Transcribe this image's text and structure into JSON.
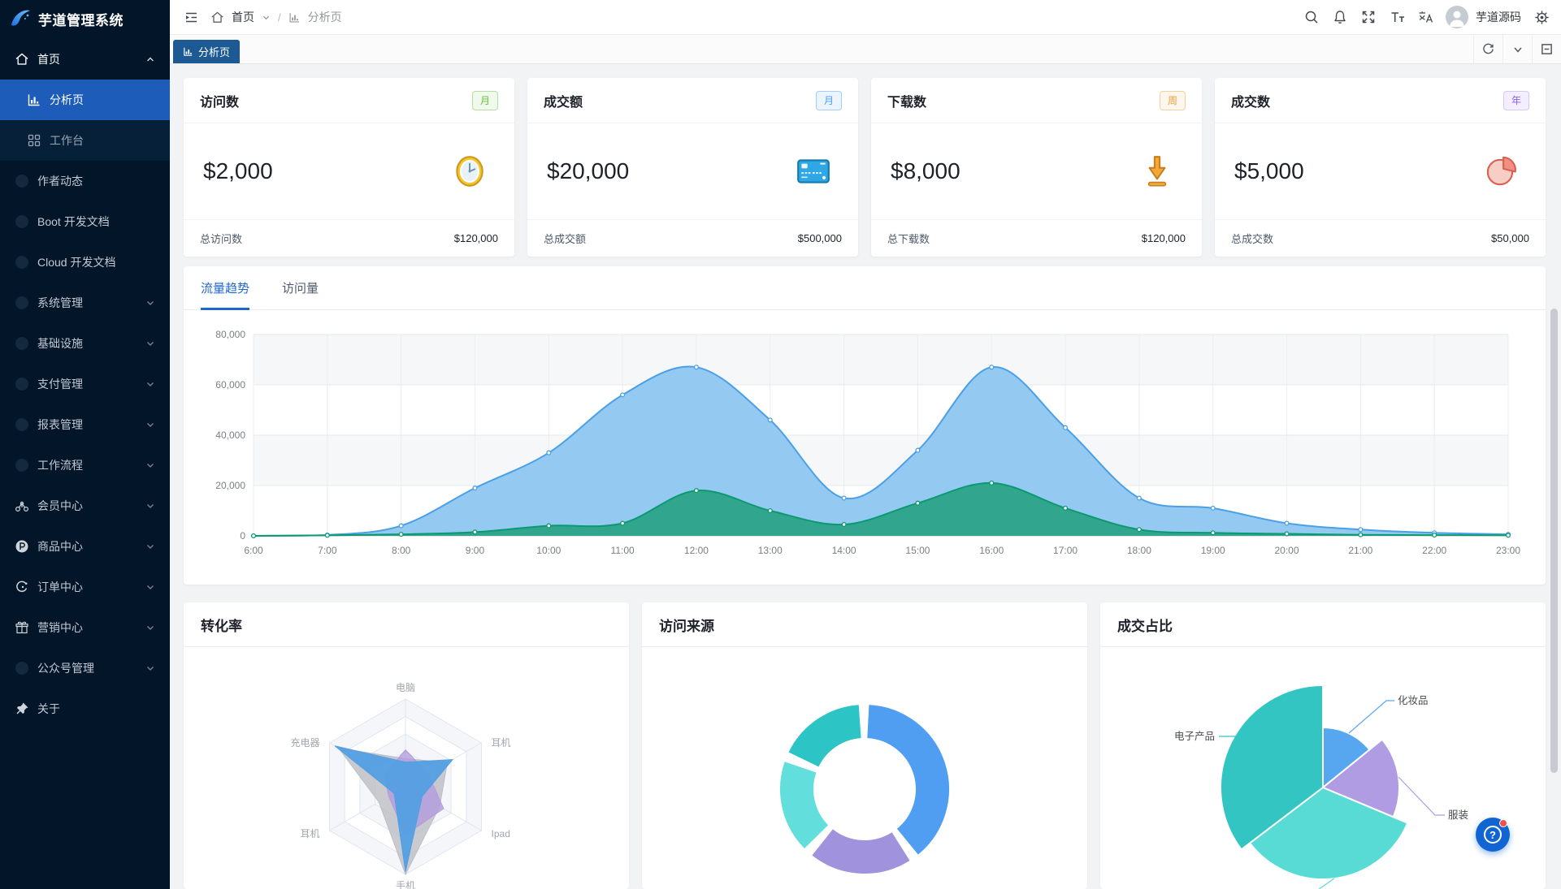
{
  "app": {
    "title": "芋道管理系统"
  },
  "sidebar": {
    "logo_text": "芋道管理系统",
    "items": [
      {
        "label": "首页",
        "icon": "home-icon",
        "chevron": "up",
        "active": false
      },
      {
        "label": "分析页",
        "icon": "bar-chart-icon",
        "active": true
      },
      {
        "label": "工作台",
        "icon": "grid-icon",
        "active": false
      },
      {
        "label": "作者动态",
        "icon": "dot-icon",
        "active": false
      },
      {
        "label": "Boot 开发文档",
        "icon": "dot-icon",
        "active": false
      },
      {
        "label": "Cloud 开发文档",
        "icon": "dot-icon",
        "active": false
      },
      {
        "label": "系统管理",
        "icon": "dot-icon",
        "chevron": "down",
        "active": false
      },
      {
        "label": "基础设施",
        "icon": "dot-icon",
        "chevron": "down",
        "active": false
      },
      {
        "label": "支付管理",
        "icon": "dot-icon",
        "chevron": "down",
        "active": false
      },
      {
        "label": "报表管理",
        "icon": "dot-icon",
        "chevron": "down",
        "active": false
      },
      {
        "label": "工作流程",
        "icon": "dot-icon",
        "chevron": "down",
        "active": false
      },
      {
        "label": "会员中心",
        "icon": "member-icon",
        "chevron": "down",
        "active": false
      },
      {
        "label": "商品中心",
        "icon": "product-icon",
        "chevron": "down",
        "active": false
      },
      {
        "label": "订单中心",
        "icon": "order-icon",
        "chevron": "down",
        "active": false
      },
      {
        "label": "营销中心",
        "icon": "gift-icon",
        "chevron": "down",
        "active": false
      },
      {
        "label": "公众号管理",
        "icon": "dot-icon",
        "chevron": "down",
        "active": false
      },
      {
        "label": "关于",
        "icon": "pin-icon",
        "active": false
      }
    ]
  },
  "header": {
    "breadcrumb": {
      "root": "首页",
      "separator": "/",
      "current": "分析页"
    },
    "right_icons": [
      "search-icon",
      "bell-icon",
      "fullscreen-icon",
      "font-size-icon",
      "language-icon",
      "settings-icon"
    ],
    "user": {
      "name": "芋道源码"
    }
  },
  "tabbar": {
    "active_tab": "分析页",
    "right_icons": [
      "refresh-icon",
      "chevron-down-icon",
      "maximize-icon"
    ]
  },
  "stat_cards": [
    {
      "title": "访问数",
      "badge": "月",
      "badge_style": "success",
      "value": "$2,000",
      "icon": "clock-icon",
      "footer_label": "总访问数",
      "footer_value": "$120,000"
    },
    {
      "title": "成交额",
      "badge": "月",
      "badge_style": "primary",
      "value": "$20,000",
      "icon": "bank-card-icon",
      "footer_label": "总成交额",
      "footer_value": "$500,000"
    },
    {
      "title": "下载数",
      "badge": "周",
      "badge_style": "warning",
      "value": "$8,000",
      "icon": "download-icon",
      "footer_label": "总下载数",
      "footer_value": "$120,000"
    },
    {
      "title": "成交数",
      "badge": "年",
      "badge_style": "purple",
      "value": "$5,000",
      "icon": "pie-icon",
      "footer_label": "总成交数",
      "footer_value": "$50,000"
    }
  ],
  "trend": {
    "tabs": [
      "流量趋势",
      "访问量"
    ],
    "active_tab": "流量趋势"
  },
  "bottom_cards": [
    {
      "title": "转化率"
    },
    {
      "title": "访问来源"
    },
    {
      "title": "成交占比"
    }
  ],
  "help_fab": {
    "text": "?"
  },
  "chart_data": [
    {
      "id": "traffic-trend",
      "type": "area",
      "title": "流量趋势",
      "x": [
        "6:00",
        "7:00",
        "8:00",
        "9:00",
        "10:00",
        "11:00",
        "12:00",
        "13:00",
        "14:00",
        "15:00",
        "16:00",
        "17:00",
        "18:00",
        "19:00",
        "20:00",
        "21:00",
        "22:00",
        "23:00"
      ],
      "series": [
        {
          "name": "series-blue",
          "color": "#4aa0e6",
          "fill": "#8cc6f1",
          "values": [
            0,
            300,
            4000,
            19000,
            33000,
            56000,
            67000,
            46000,
            15000,
            34000,
            67000,
            43000,
            15000,
            11000,
            5000,
            2500,
            1200,
            600
          ]
        },
        {
          "name": "series-green",
          "color": "#0a9a70",
          "fill": "#2aa287",
          "values": [
            0,
            200,
            600,
            1500,
            4000,
            5000,
            18000,
            10000,
            4500,
            13000,
            21000,
            11000,
            2500,
            1200,
            800,
            400,
            300,
            200
          ]
        }
      ],
      "ylim": [
        0,
        80000
      ],
      "yticks": [
        0,
        20000,
        40000,
        60000,
        80000
      ],
      "grid": true,
      "legend": "none"
    },
    {
      "id": "conversion-radar",
      "type": "radar",
      "title": "转化率",
      "axes": [
        "电脑",
        "耳机",
        "Ipad",
        "手机",
        "耳机",
        "充电器"
      ],
      "max": 100,
      "levels": 5,
      "series": [
        {
          "name": "series-gray",
          "color": "#bcbec3",
          "values": [
            32,
            55,
            45,
            100,
            35,
            88
          ]
        },
        {
          "name": "series-purple",
          "color": "#b29bde",
          "values": [
            42,
            30,
            50,
            55,
            22,
            28
          ]
        },
        {
          "name": "series-blue",
          "color": "#549fe3",
          "values": [
            28,
            62,
            22,
            97,
            15,
            93
          ]
        }
      ]
    },
    {
      "id": "visit-source-donut",
      "type": "pie",
      "subtype": "donut",
      "title": "访问来源",
      "inner_radius": 63,
      "outer_radius": 104,
      "start_angle": 3,
      "gap_deg": 7,
      "slices": [
        {
          "label": null,
          "color": "#4f9ef2",
          "value": 39
        },
        {
          "label": null,
          "color": "#a092dc",
          "value": 20
        },
        {
          "label": null,
          "color": "#62dfdc",
          "value": 18
        },
        {
          "label": null,
          "color": "#2dc4c6",
          "value": 17
        }
      ]
    },
    {
      "id": "deal-share-rose",
      "type": "pie",
      "subtype": "rose",
      "title": "成交占比",
      "slices": [
        {
          "label": "化妆品",
          "color": "#57a7f0",
          "value": 14,
          "radius": 74
        },
        {
          "label": "服装",
          "color": "#af9ce3",
          "value": 17,
          "radius": 94
        },
        {
          "label": null,
          "color": "#58dbd4",
          "value": 33,
          "radius": 113
        },
        {
          "label": "电子产品",
          "color": "#32c5c2",
          "value": 35,
          "radius": 126
        }
      ]
    }
  ]
}
